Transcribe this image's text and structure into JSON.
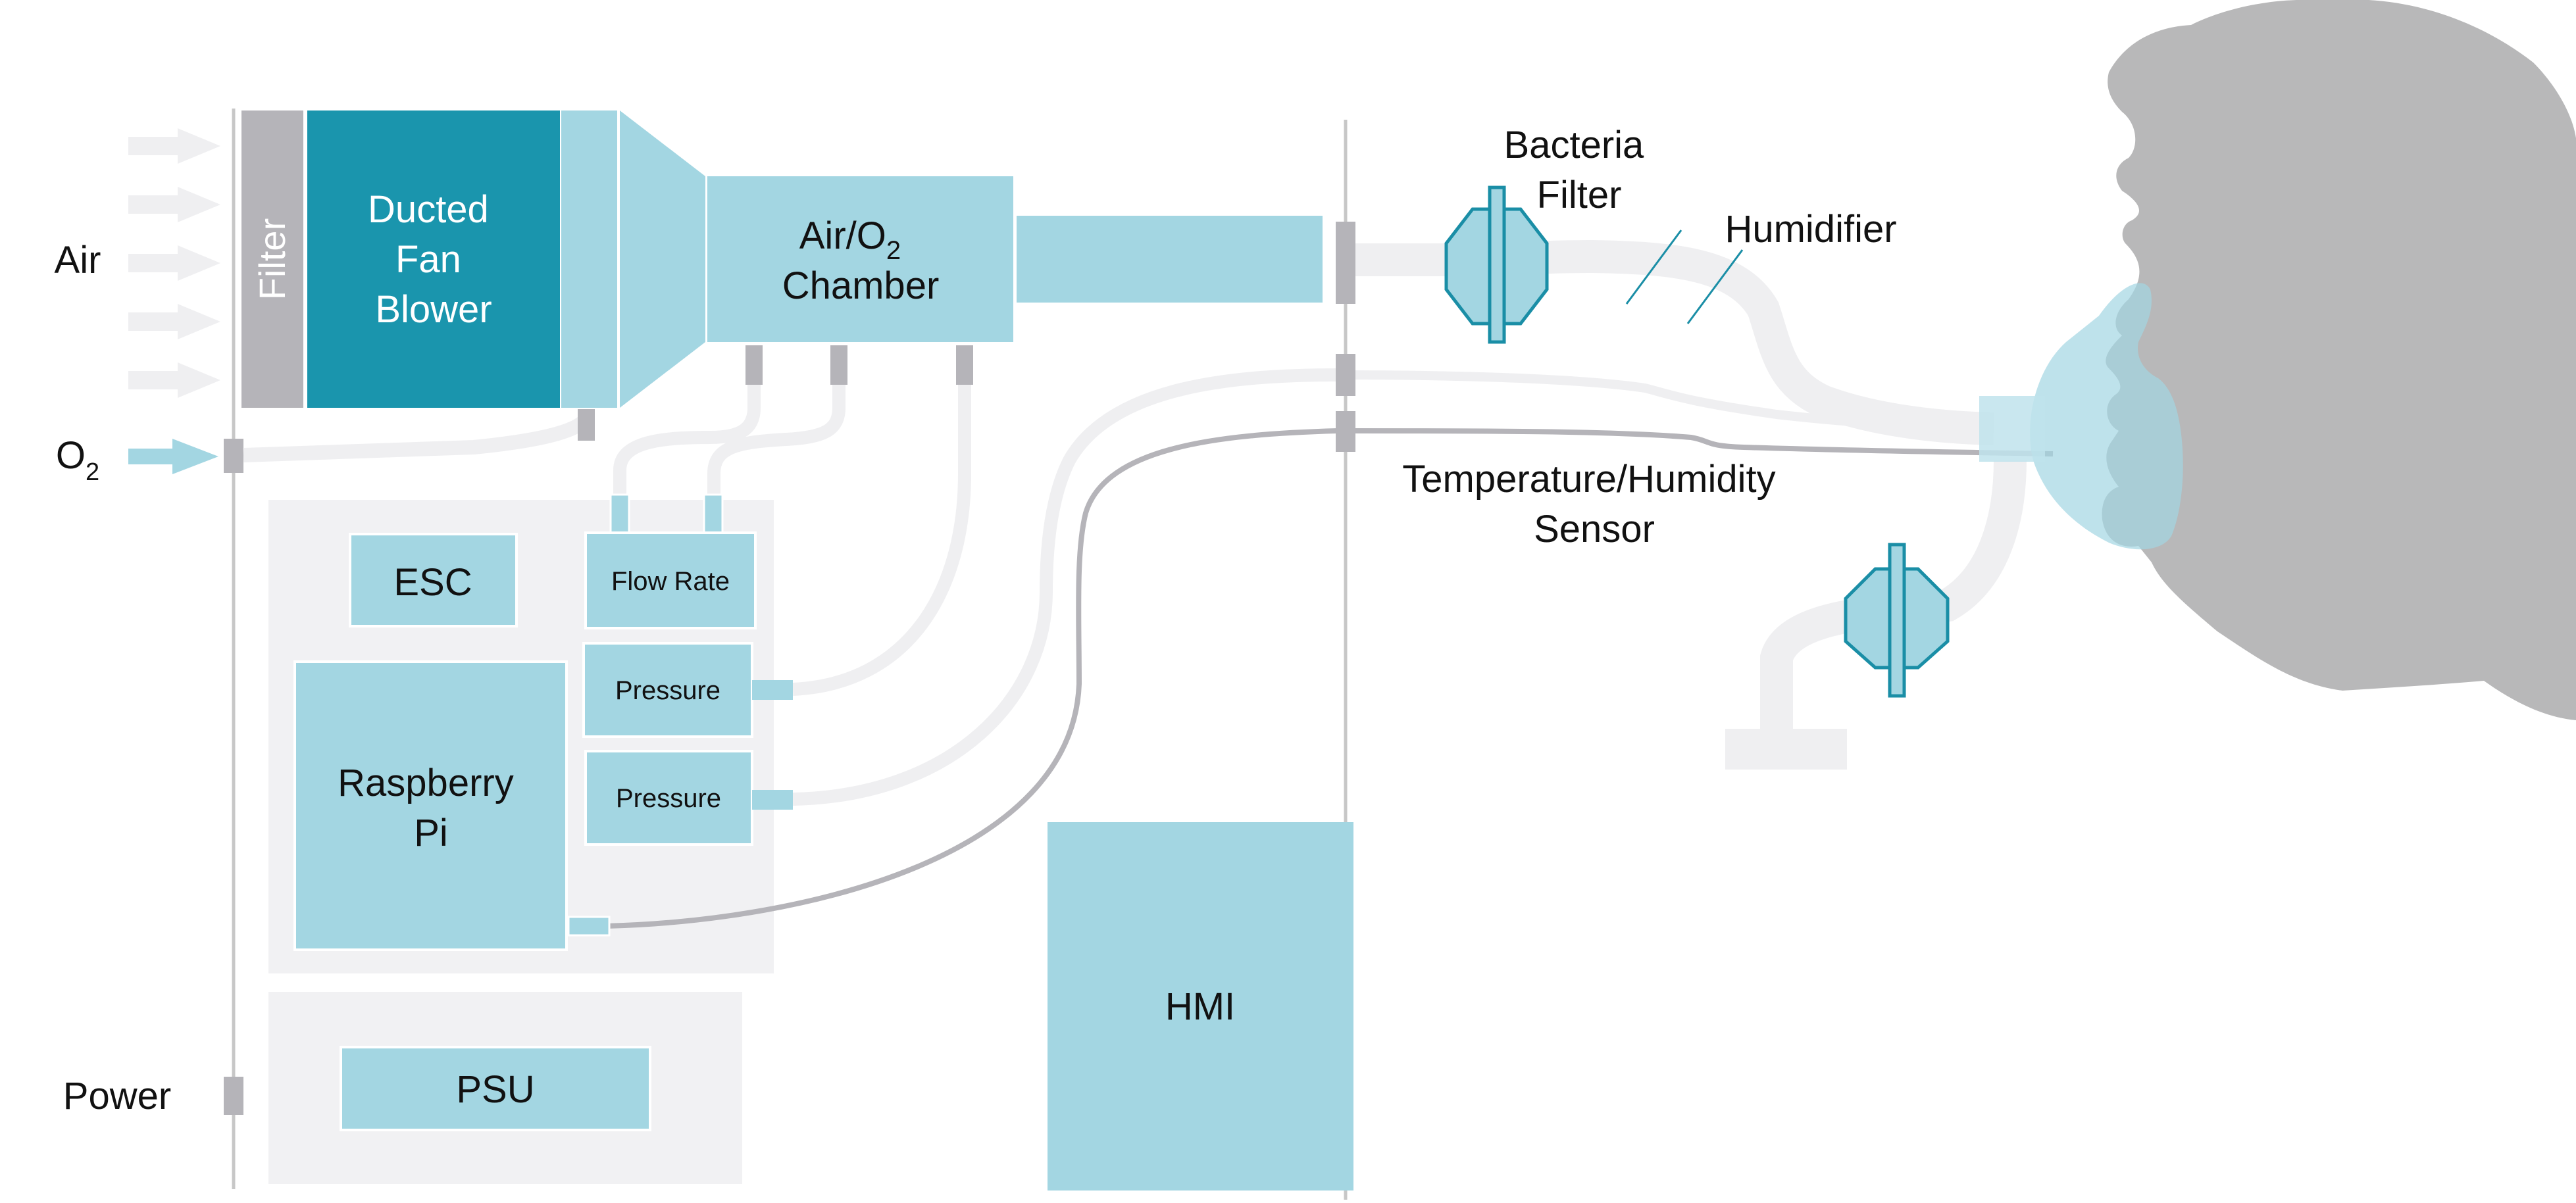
{
  "labels": {
    "air": "Air",
    "o2": "O",
    "o2_sub": "2",
    "power": "Power",
    "filter": "Filter",
    "ducted_fan_blower": [
      "Ducted",
      "Fan",
      "Blower"
    ],
    "air_o2_chamber": [
      "Air/O",
      "2",
      "Chamber"
    ],
    "esc": "ESC",
    "flow_rate": "Flow Rate",
    "pressure_1": "Pressure",
    "pressure_2": "Pressure",
    "raspberry_pi": [
      "Raspberry",
      "Pi"
    ],
    "psu": "PSU",
    "hmi": "HMI",
    "bacteria_filter": [
      "Bacteria",
      "Filter"
    ],
    "humidifier": "Humidifier",
    "temp_humidity_sensor": [
      "Temperature/Humidity",
      "Sensor"
    ]
  },
  "colors": {
    "light_teal": "#a3d6e2",
    "dark_teal": "#1a95ad",
    "filter_grey": "#b5b4b9",
    "panel_grey": "#f1f1f3",
    "tube_grey": "#efeff1",
    "head_grey": "#b8b8b9",
    "mask_teal": "#bfe3ec",
    "outline_teal": "#1a8ea6"
  }
}
